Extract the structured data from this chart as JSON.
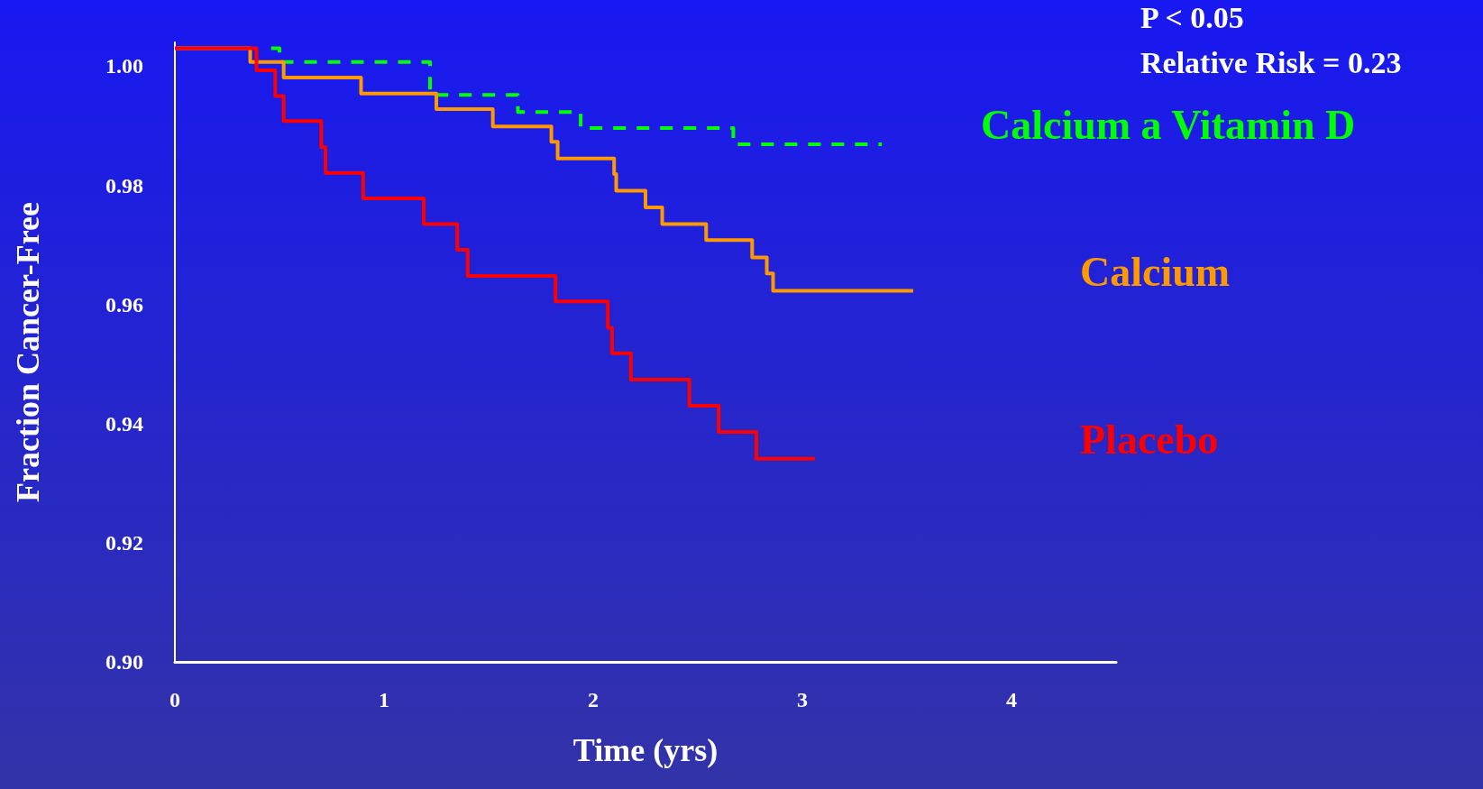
{
  "chart_data": {
    "type": "step",
    "xlabel": "Time (yrs)",
    "ylabel": "Fraction Cancer-Free",
    "annotations": [
      "P < 0.05",
      "Relative Risk = 0.23"
    ],
    "series": [
      {
        "name": "Calcium a Vitamin D",
        "color": "#00ff00",
        "line_style": "dashed",
        "x": [
          0.46,
          0.5,
          1.22,
          1.64,
          1.94,
          2.67,
          3.38
        ],
        "values": [
          1.003,
          1.0007,
          0.9952,
          0.9923,
          0.9896,
          0.9869,
          0.9869
        ]
      },
      {
        "name": "Calcium",
        "color": "#ff9900",
        "line_style": "solid",
        "x": [
          0,
          0.36,
          0.52,
          0.89,
          1.25,
          1.52,
          1.8,
          1.83,
          2.1,
          2.11,
          2.25,
          2.33,
          2.54,
          2.76,
          2.83,
          2.86,
          3.53
        ],
        "values": [
          1.003,
          1.0007,
          0.9981,
          0.9954,
          0.9928,
          0.9899,
          0.9873,
          0.9845,
          0.9819,
          0.9791,
          0.9763,
          0.9735,
          0.9708,
          0.9679,
          0.9652,
          0.9623,
          0.9623
        ]
      },
      {
        "name": "Placebo",
        "color": "#ff0000",
        "line_style": "solid",
        "x": [
          0,
          0.39,
          0.48,
          0.52,
          0.7,
          0.72,
          0.9,
          1.19,
          1.35,
          1.4,
          1.82,
          2.07,
          2.09,
          2.18,
          2.46,
          2.6,
          2.78,
          3.06
        ],
        "values": [
          1.003,
          0.9993,
          0.995,
          0.9908,
          0.9864,
          0.9821,
          0.9778,
          0.9735,
          0.9692,
          0.9648,
          0.9605,
          0.9561,
          0.9518,
          0.9474,
          0.943,
          0.9386,
          0.9341,
          0.9341
        ]
      }
    ],
    "xlim": [
      0,
      4.5
    ],
    "xticks": [
      0,
      1,
      2,
      3,
      4
    ],
    "ylim": [
      0.9,
      1.004
    ],
    "yticks": [
      {
        "value": 0.9,
        "label": "0.90"
      },
      {
        "value": 0.92,
        "label": "0.92"
      },
      {
        "value": 0.94,
        "label": "0.94"
      },
      {
        "value": 0.96,
        "label": "0.96"
      },
      {
        "value": 0.98,
        "label": "0.98"
      },
      {
        "value": 1.0,
        "label": "1.00"
      }
    ],
    "grid": false,
    "legend": false,
    "marker": "none"
  }
}
